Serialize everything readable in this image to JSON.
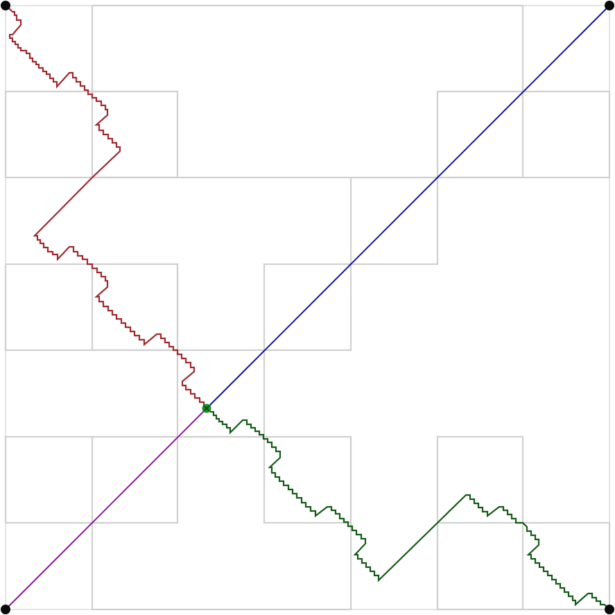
{
  "colors": {
    "background": "#ffffff",
    "border": "#e4e4e4",
    "grid": "#d0d0d0",
    "path_red": "#a0282d",
    "path_blue": "#0a14a0",
    "path_purple": "#8c14a0",
    "path_green": "#145a14",
    "node": "#0a0a0a",
    "center_marker": "#14961e"
  },
  "markers": {
    "corner_nodes": [
      "top-left",
      "top-right",
      "bottom-left",
      "bottom-right"
    ],
    "center_marker_icon": "cross-icon"
  }
}
